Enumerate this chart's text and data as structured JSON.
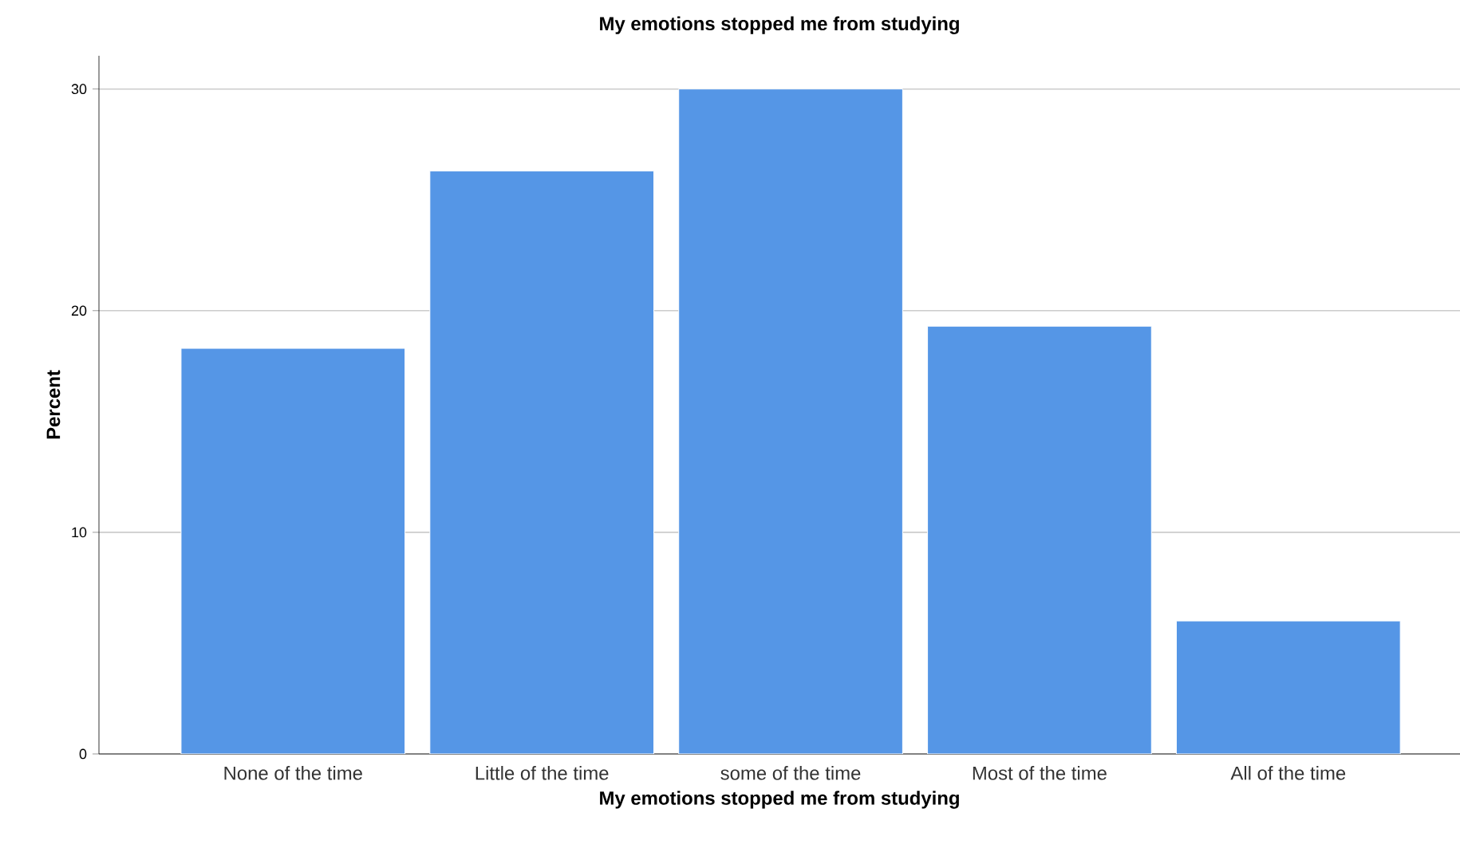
{
  "chart_data": {
    "type": "bar",
    "title": "My emotions stopped me from studying",
    "xlabel": "My emotions stopped me from studying",
    "ylabel": "Percent",
    "categories": [
      "None of the time",
      "Little of the time",
      "some of the time",
      "Most of the time",
      "All of the time"
    ],
    "values": [
      18.3,
      26.3,
      30.0,
      19.3,
      6.0
    ],
    "color": "#5596e6",
    "ylim": [
      0,
      31.5
    ],
    "yticks": [
      0,
      10,
      20,
      30
    ],
    "grid": "y"
  }
}
